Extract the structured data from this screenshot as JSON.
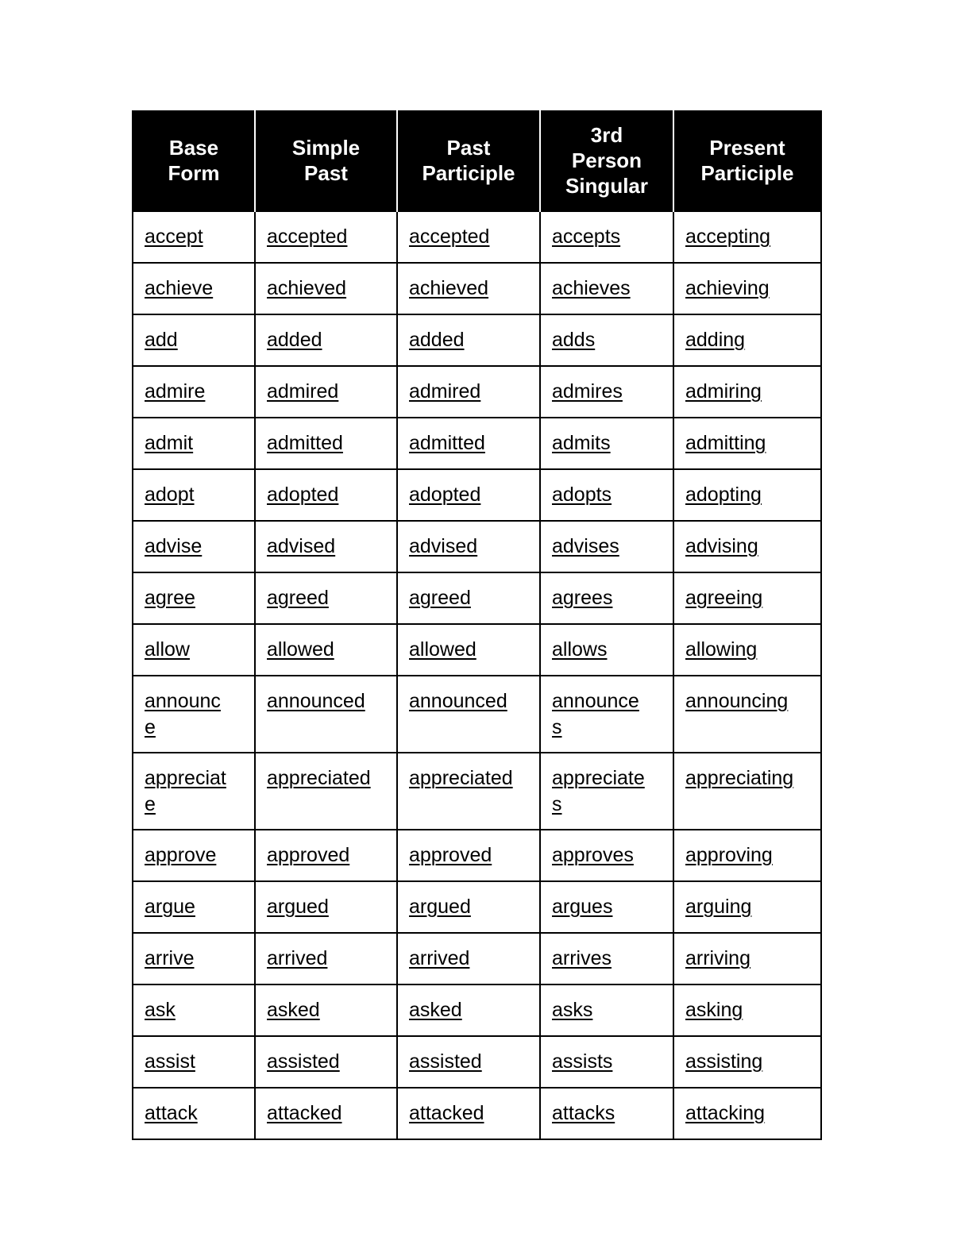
{
  "headers": [
    "Base\nForm",
    "Simple\nPast",
    "Past\nParticiple",
    "3rd\nPerson\nSingular",
    "Present\nParticiple"
  ],
  "rows": [
    [
      "accept",
      "accepted",
      "accepted",
      "accepts",
      "accepting"
    ],
    [
      "achieve",
      "achieved",
      "achieved",
      "achieves",
      "achieving"
    ],
    [
      "add",
      "added",
      "added",
      "adds",
      "adding"
    ],
    [
      "admire",
      "admired",
      "admired",
      "admires",
      "admiring"
    ],
    [
      "admit",
      "admitted",
      "admitted",
      "admits",
      "admitting"
    ],
    [
      "adopt",
      "adopted",
      "adopted",
      "adopts",
      "adopting"
    ],
    [
      "advise",
      "advised",
      "advised",
      "advises",
      "advising"
    ],
    [
      "agree",
      "agreed",
      "agreed",
      "agrees",
      "agreeing"
    ],
    [
      "allow",
      "allowed",
      "allowed",
      "allows",
      "allowing"
    ],
    [
      "announc\ne",
      "announced",
      "announced",
      "announce\ns",
      "announcing"
    ],
    [
      "appreciat\ne",
      "appreciated",
      "appreciated",
      "appreciate\ns",
      "appreciating"
    ],
    [
      "approve",
      "approved",
      "approved",
      "approves",
      "approving"
    ],
    [
      "argue",
      "argued",
      "argued",
      "argues",
      "arguing"
    ],
    [
      "arrive",
      "arrived",
      "arrived",
      "arrives",
      "arriving"
    ],
    [
      "ask",
      "asked",
      "asked",
      "asks",
      "asking"
    ],
    [
      "assist",
      "assisted",
      "assisted",
      "assists",
      "assisting"
    ],
    [
      "attack",
      "attacked",
      "attacked",
      "attacks",
      "attacking"
    ]
  ]
}
